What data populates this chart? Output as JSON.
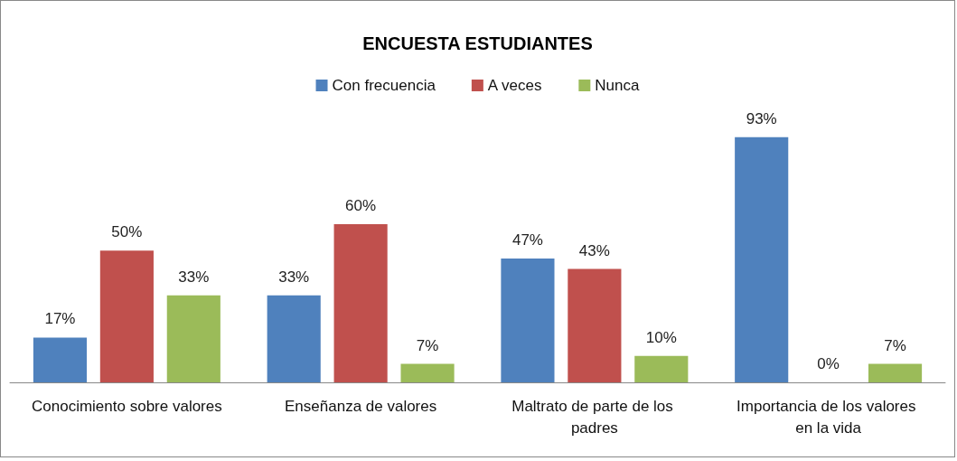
{
  "chart_data": {
    "type": "bar",
    "title": "ENCUESTA ESTUDIANTES",
    "categories": [
      "Conocimiento sobre valores",
      "Enseñanza de valores",
      "Maltrato de parte de los padres",
      "Importancia de los valores en la vida"
    ],
    "series": [
      {
        "name": "Con frecuencia",
        "color": "#4f81bd",
        "values": [
          17,
          33,
          47,
          93
        ],
        "value_labels": [
          "17%",
          "33%",
          "47%",
          "93%"
        ]
      },
      {
        "name": "A veces",
        "color": "#c0504d",
        "values": [
          50,
          60,
          43,
          0
        ],
        "value_labels": [
          "50%",
          "60%",
          "43%",
          "0%"
        ]
      },
      {
        "name": "Nunca",
        "color": "#9bbb59",
        "values": [
          33,
          7,
          10,
          7
        ],
        "value_labels": [
          "33%",
          "7%",
          "10%",
          "7%"
        ]
      }
    ],
    "legend": "top"
  }
}
